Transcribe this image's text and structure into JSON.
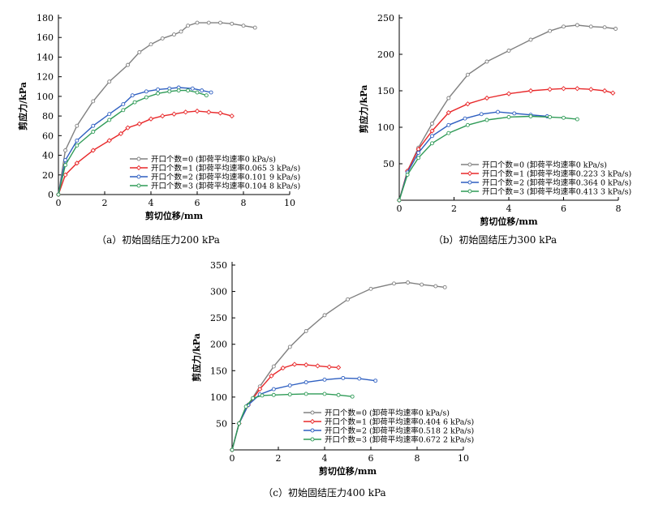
{
  "figure": {
    "charts": [
      {
        "caption": "（a）初始固结压力200 kPa",
        "xlabel": "剪切位移/mm",
        "ylabel": "剪应力/kPa"
      },
      {
        "caption": "（b）初始固结压力300 kPa",
        "xlabel": "剪切位移/mm",
        "ylabel": "剪应力/kPa"
      },
      {
        "caption": "（c）初始固结压力400 kPa",
        "xlabel": "剪切位移/mm",
        "ylabel": "剪应力/kPa"
      }
    ]
  },
  "chart_data": [
    {
      "type": "line",
      "title": "（a）初始固结压力200 kPa",
      "xlabel": "剪切位移/mm",
      "ylabel": "剪应力/kPa",
      "xlim": [
        0,
        10
      ],
      "ylim": [
        0,
        180
      ],
      "xticks": [
        0,
        2,
        4,
        6,
        8,
        10
      ],
      "yticks": [
        0,
        20,
        40,
        60,
        80,
        100,
        120,
        140,
        160,
        180
      ],
      "legend_position": "bottom-right",
      "series": [
        {
          "name": "开口个数=0 (卸荷平均速率0 kPa/s)",
          "color": "#808080",
          "marker": "circle",
          "x": [
            0,
            0.3,
            0.8,
            1.5,
            2.2,
            3.0,
            3.5,
            4.0,
            4.5,
            5.0,
            5.3,
            5.6,
            6.0,
            6.5,
            7.0,
            7.5,
            8.0,
            8.5
          ],
          "y": [
            0,
            45,
            70,
            95,
            115,
            132,
            145,
            153,
            159,
            163,
            166,
            172,
            175,
            175,
            175,
            174,
            172,
            170
          ]
        },
        {
          "name": "开口个数=1 (卸荷平均速率0.065 3 kPa/s)",
          "color": "#e8282a",
          "marker": "diamond",
          "x": [
            0,
            0.3,
            0.8,
            1.5,
            2.2,
            2.7,
            3.0,
            3.5,
            4.0,
            4.5,
            5.0,
            5.5,
            6.0,
            6.5,
            7.0,
            7.5
          ],
          "y": [
            0,
            20,
            32,
            45,
            55,
            62,
            68,
            72,
            77,
            80,
            82,
            84,
            85,
            84,
            83,
            80
          ]
        },
        {
          "name": "开口个数=2 (卸荷平均速率0.101 9 kPa/s)",
          "color": "#2e5fc1",
          "marker": "circle",
          "x": [
            0,
            0.3,
            0.8,
            1.5,
            2.2,
            2.8,
            3.2,
            3.8,
            4.3,
            4.8,
            5.2,
            5.8,
            6.2,
            6.6
          ],
          "y": [
            0,
            35,
            55,
            70,
            82,
            92,
            101,
            105,
            107,
            108,
            109,
            108,
            106,
            104
          ]
        },
        {
          "name": "开口个数=3 (卸荷平均速率0.104 8 kPa/s)",
          "color": "#2f9b57",
          "marker": "circle",
          "x": [
            0,
            0.3,
            0.8,
            1.5,
            2.2,
            2.8,
            3.3,
            3.8,
            4.3,
            4.8,
            5.2,
            5.6,
            6.0,
            6.4
          ],
          "y": [
            0,
            30,
            50,
            64,
            76,
            86,
            94,
            99,
            103,
            105,
            106,
            106,
            104,
            101
          ]
        }
      ]
    },
    {
      "type": "line",
      "title": "（b）初始固结压力300 kPa",
      "xlabel": "剪切位移/mm",
      "ylabel": "剪应力/kPa",
      "xlim": [
        0,
        8
      ],
      "ylim": [
        0,
        250
      ],
      "xticks": [
        0,
        2,
        4,
        6,
        8
      ],
      "yticks": [
        50,
        100,
        150,
        200,
        250
      ],
      "legend_position": "bottom-right",
      "series": [
        {
          "name": "开口个数=0 (卸荷平均速率0 kPa/s)",
          "color": "#808080",
          "marker": "circle",
          "x": [
            0,
            0.3,
            0.7,
            1.2,
            1.8,
            2.5,
            3.2,
            4.0,
            4.8,
            5.5,
            6.0,
            6.5,
            7.0,
            7.5,
            7.9
          ],
          "y": [
            0,
            40,
            72,
            105,
            140,
            172,
            190,
            205,
            220,
            232,
            238,
            240,
            238,
            237,
            235
          ]
        },
        {
          "name": "开口个数=1 (卸荷平均速率0.223 3 kPa/s)",
          "color": "#e8282a",
          "marker": "diamond",
          "x": [
            0,
            0.3,
            0.7,
            1.2,
            1.8,
            2.5,
            3.2,
            4.0,
            4.8,
            5.5,
            6.0,
            6.5,
            7.0,
            7.5,
            7.8
          ],
          "y": [
            0,
            40,
            70,
            95,
            120,
            132,
            140,
            146,
            150,
            152,
            153,
            153,
            152,
            150,
            147
          ]
        },
        {
          "name": "开口个数=2 (卸荷平均速率0.364 0 kPa/s)",
          "color": "#2e5fc1",
          "marker": "circle",
          "x": [
            0,
            0.3,
            0.7,
            1.2,
            1.8,
            2.4,
            3.0,
            3.6,
            4.2,
            4.8,
            5.4
          ],
          "y": [
            0,
            38,
            65,
            88,
            103,
            112,
            118,
            121,
            119,
            117,
            115
          ]
        },
        {
          "name": "开口个数=3 (卸荷平均速率0.413 3 kPa/s)",
          "color": "#2f9b57",
          "marker": "circle",
          "x": [
            0,
            0.3,
            0.7,
            1.2,
            1.8,
            2.5,
            3.2,
            4.0,
            4.8,
            5.5,
            6.0,
            6.5
          ],
          "y": [
            0,
            35,
            58,
            78,
            92,
            103,
            110,
            114,
            115,
            114,
            113,
            111
          ]
        }
      ]
    },
    {
      "type": "line",
      "title": "（c）初始固结压力400 kPa",
      "xlabel": "剪切位移/mm",
      "ylabel": "剪应力/kPa",
      "xlim": [
        0,
        10
      ],
      "ylim": [
        0,
        350
      ],
      "xticks": [
        0,
        2,
        4,
        6,
        8,
        10
      ],
      "yticks": [
        50,
        100,
        150,
        200,
        250,
        300,
        350
      ],
      "legend_position": "bottom-right",
      "series": [
        {
          "name": "开口个数=0 (卸荷平均速率0 kPa/s)",
          "color": "#808080",
          "marker": "circle",
          "x": [
            0,
            0.3,
            0.7,
            1.2,
            1.8,
            2.5,
            3.2,
            4.0,
            5.0,
            6.0,
            7.0,
            7.6,
            8.2,
            8.8,
            9.2
          ],
          "y": [
            0,
            50,
            85,
            120,
            158,
            195,
            225,
            255,
            285,
            305,
            315,
            317,
            313,
            310,
            308
          ]
        },
        {
          "name": "开口个数=1 (卸荷平均速率0.404 6 kPa/s)",
          "color": "#e8282a",
          "marker": "diamond",
          "x": [
            0,
            0.3,
            0.7,
            1.2,
            1.7,
            2.2,
            2.7,
            3.2,
            3.7,
            4.2,
            4.6
          ],
          "y": [
            0,
            50,
            85,
            115,
            140,
            155,
            162,
            161,
            159,
            157,
            156
          ]
        },
        {
          "name": "开口个数=2 (卸荷平均速率0.518 2 kPa/s)",
          "color": "#2e5fc1",
          "marker": "circle",
          "x": [
            0,
            0.3,
            0.7,
            1.2,
            1.8,
            2.5,
            3.2,
            4.0,
            4.8,
            5.5,
            6.2
          ],
          "y": [
            0,
            50,
            85,
            105,
            115,
            122,
            128,
            133,
            136,
            135,
            131
          ]
        },
        {
          "name": "开口个数=3 (卸荷平均速率0.672 2 kPa/s)",
          "color": "#2f9b57",
          "marker": "circle",
          "x": [
            0,
            0.3,
            0.6,
            0.9,
            1.3,
            1.8,
            2.5,
            3.2,
            4.0,
            4.6,
            5.2
          ],
          "y": [
            0,
            50,
            82,
            98,
            103,
            104,
            105,
            106,
            106,
            104,
            101
          ]
        }
      ]
    }
  ]
}
